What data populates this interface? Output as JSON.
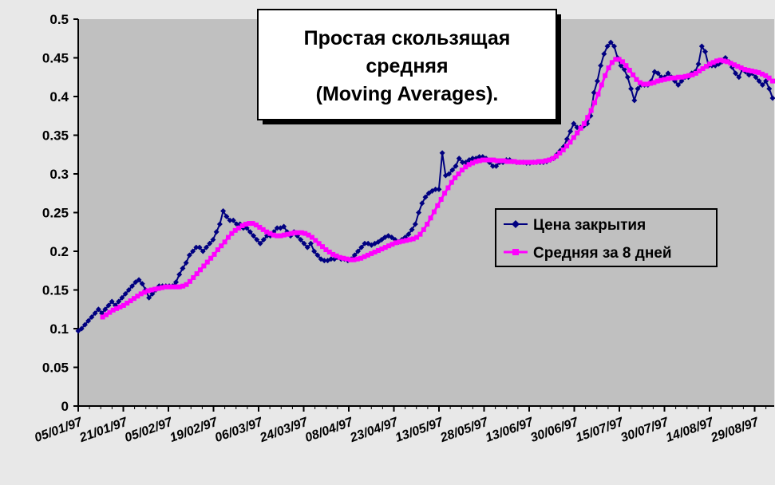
{
  "chart_data": {
    "type": "line",
    "title_lines": [
      "Простая скользящая",
      "средняя",
      "(Moving Averages)."
    ],
    "xlabel": "",
    "ylabel": "",
    "ylim": [
      0,
      0.5
    ],
    "y_ticks": [
      "0",
      "0.05",
      "0.1",
      "0.15",
      "0.2",
      "0.25",
      "0.3",
      "0.35",
      "0.4",
      "0.45",
      "0.5"
    ],
    "x_tick_labels": [
      "05/01/97",
      "21/01/97",
      "05/02/97",
      "19/02/97",
      "06/03/97",
      "24/03/97",
      "08/04/97",
      "23/04/97",
      "13/05/97",
      "28/05/97",
      "13/06/97",
      "30/06/97",
      "15/07/97",
      "30/07/97",
      "14/08/97",
      "29/08/97"
    ],
    "grid": false,
    "legend_position": "right",
    "colors": {
      "plot_bg": "#c0c0c0",
      "series_close": "#000080",
      "series_ma": "#ff00ff"
    },
    "series": [
      {
        "name": "Цена закрытия",
        "marker": "diamond",
        "values": [
          0.097,
          0.1,
          0.105,
          0.11,
          0.115,
          0.12,
          0.125,
          0.12,
          0.125,
          0.13,
          0.135,
          0.13,
          0.135,
          0.14,
          0.145,
          0.15,
          0.155,
          0.16,
          0.163,
          0.158,
          0.15,
          0.14,
          0.145,
          0.15,
          0.155,
          0.155,
          0.155,
          0.155,
          0.155,
          0.16,
          0.17,
          0.178,
          0.185,
          0.195,
          0.2,
          0.205,
          0.205,
          0.2,
          0.205,
          0.21,
          0.215,
          0.225,
          0.235,
          0.252,
          0.245,
          0.24,
          0.24,
          0.235,
          0.235,
          0.23,
          0.23,
          0.225,
          0.22,
          0.215,
          0.21,
          0.215,
          0.22,
          0.22,
          0.225,
          0.23,
          0.23,
          0.232,
          0.225,
          0.22,
          0.225,
          0.22,
          0.215,
          0.21,
          0.205,
          0.21,
          0.2,
          0.195,
          0.19,
          0.188,
          0.188,
          0.19,
          0.19,
          0.192,
          0.19,
          0.19,
          0.188,
          0.19,
          0.195,
          0.2,
          0.205,
          0.21,
          0.21,
          0.208,
          0.21,
          0.212,
          0.215,
          0.218,
          0.22,
          0.218,
          0.215,
          0.212,
          0.215,
          0.218,
          0.222,
          0.228,
          0.235,
          0.25,
          0.262,
          0.27,
          0.275,
          0.278,
          0.28,
          0.28,
          0.327,
          0.298,
          0.3,
          0.305,
          0.31,
          0.32,
          0.315,
          0.315,
          0.318,
          0.32,
          0.32,
          0.322,
          0.322,
          0.32,
          0.315,
          0.31,
          0.31,
          0.315,
          0.315,
          0.318,
          0.318,
          0.316,
          0.315,
          0.315,
          0.315,
          0.314,
          0.314,
          0.315,
          0.315,
          0.315,
          0.315,
          0.316,
          0.318,
          0.32,
          0.325,
          0.33,
          0.335,
          0.345,
          0.355,
          0.365,
          0.36,
          0.36,
          0.362,
          0.365,
          0.375,
          0.405,
          0.42,
          0.44,
          0.455,
          0.465,
          0.47,
          0.465,
          0.45,
          0.44,
          0.435,
          0.425,
          0.41,
          0.395,
          0.41,
          0.415,
          0.415,
          0.415,
          0.42,
          0.432,
          0.43,
          0.425,
          0.425,
          0.43,
          0.425,
          0.42,
          0.415,
          0.42,
          0.425,
          0.425,
          0.43,
          0.432,
          0.442,
          0.465,
          0.458,
          0.44,
          0.44,
          0.44,
          0.442,
          0.445,
          0.45,
          0.445,
          0.438,
          0.43,
          0.425,
          0.435,
          0.432,
          0.428,
          0.43,
          0.425,
          0.42,
          0.415,
          0.42,
          0.41,
          0.398
        ]
      },
      {
        "name": "Средняя за 8 дней",
        "marker": "square",
        "values": [
          null,
          null,
          null,
          null,
          null,
          null,
          null,
          0.115,
          0.118,
          0.121,
          0.124,
          0.126,
          0.128,
          0.13,
          0.133,
          0.136,
          0.139,
          0.142,
          0.145,
          0.147,
          0.149,
          0.15,
          0.151,
          0.152,
          0.153,
          0.154,
          0.154,
          0.154,
          0.154,
          0.154,
          0.155,
          0.157,
          0.161,
          0.166,
          0.171,
          0.176,
          0.181,
          0.186,
          0.191,
          0.196,
          0.202,
          0.207,
          0.212,
          0.218,
          0.223,
          0.227,
          0.23,
          0.233,
          0.235,
          0.236,
          0.236,
          0.234,
          0.231,
          0.228,
          0.225,
          0.223,
          0.221,
          0.22,
          0.22,
          0.221,
          0.222,
          0.223,
          0.224,
          0.224,
          0.224,
          0.223,
          0.221,
          0.218,
          0.214,
          0.21,
          0.206,
          0.202,
          0.199,
          0.196,
          0.194,
          0.192,
          0.191,
          0.19,
          0.189,
          0.189,
          0.19,
          0.191,
          0.193,
          0.195,
          0.197,
          0.199,
          0.201,
          0.203,
          0.205,
          0.207,
          0.209,
          0.211,
          0.212,
          0.213,
          0.214,
          0.215,
          0.216,
          0.218,
          0.222,
          0.228,
          0.235,
          0.243,
          0.251,
          0.259,
          0.267,
          0.275,
          0.282,
          0.289,
          0.295,
          0.3,
          0.305,
          0.309,
          0.312,
          0.314,
          0.316,
          0.317,
          0.318,
          0.318,
          0.318,
          0.318,
          0.317,
          0.317,
          0.317,
          0.316,
          0.316,
          0.316,
          0.315,
          0.315,
          0.315,
          0.315,
          0.315,
          0.315,
          0.316,
          0.316,
          0.317,
          0.318,
          0.32,
          0.323,
          0.327,
          0.331,
          0.336,
          0.341,
          0.347,
          0.353,
          0.359,
          0.365,
          0.373,
          0.382,
          0.392,
          0.403,
          0.415,
          0.427,
          0.437,
          0.444,
          0.448,
          0.448,
          0.445,
          0.44,
          0.434,
          0.428,
          0.422,
          0.418,
          0.416,
          0.416,
          0.417,
          0.418,
          0.42,
          0.421,
          0.422,
          0.423,
          0.424,
          0.424,
          0.425,
          0.425,
          0.426,
          0.427,
          0.428,
          0.43,
          0.433,
          0.436,
          0.439,
          0.442,
          0.444,
          0.446,
          0.447,
          0.446,
          0.445,
          0.443,
          0.441,
          0.439,
          0.437,
          0.435,
          0.434,
          0.433,
          0.432,
          0.431,
          0.429,
          0.427,
          0.424,
          0.42
        ]
      }
    ]
  }
}
